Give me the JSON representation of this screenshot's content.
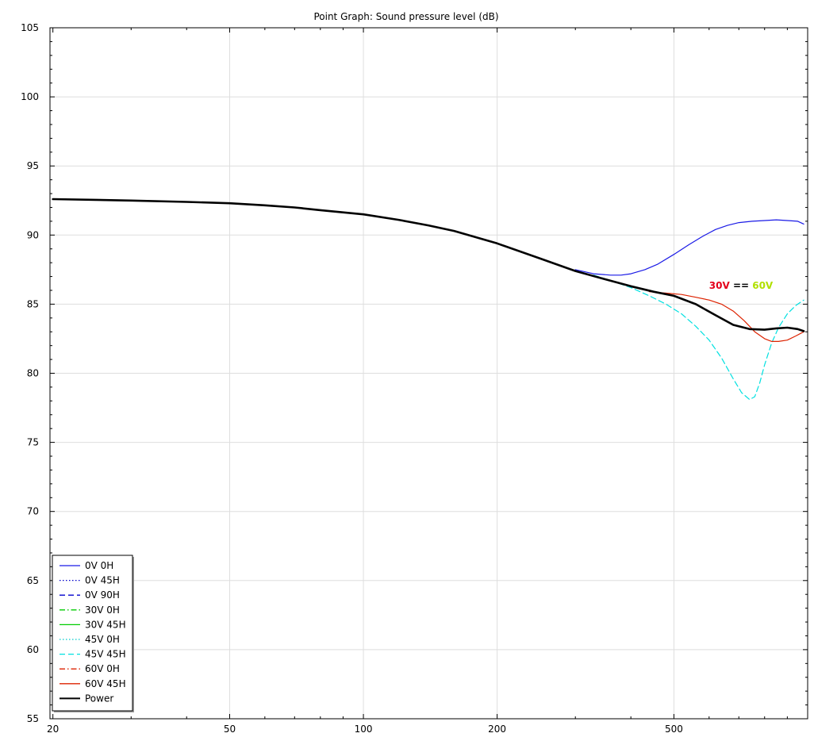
{
  "chart_data": {
    "type": "line",
    "title": "Point Graph: Sound pressure level (dB)",
    "xlabel": "",
    "ylabel": "",
    "x_scale": "log",
    "xlim": [
      19.7,
      1000
    ],
    "ylim": [
      55,
      105
    ],
    "x_ticks": [
      20,
      50,
      100,
      200,
      500
    ],
    "y_ticks": [
      55,
      60,
      65,
      70,
      75,
      80,
      85,
      90,
      95,
      100,
      105
    ],
    "grid": true,
    "legend_position": "bottom-left",
    "annotation": {
      "parts": [
        {
          "text": "30V",
          "color": "#e4001b"
        },
        {
          "text": " == ",
          "color": "#000000"
        },
        {
          "text": "60V",
          "color": "#b0e000"
        }
      ],
      "x": 600,
      "y": 86.1
    },
    "series": [
      {
        "name": "0V 0H",
        "color": "#1a1ae6",
        "dash": "solid",
        "width": 1.2,
        "x": [
          300,
          330,
          360,
          380,
          400,
          430,
          460,
          500,
          540,
          580,
          620,
          660,
          700,
          750,
          800,
          850,
          900,
          950,
          980
        ],
        "y": [
          87.5,
          87.2,
          87.1,
          87.1,
          87.2,
          87.5,
          87.9,
          88.6,
          89.3,
          89.9,
          90.4,
          90.7,
          90.9,
          91.0,
          91.05,
          91.1,
          91.05,
          91.0,
          90.8
        ]
      },
      {
        "name": "0V 45H",
        "color": "#0000cc",
        "dash": "dot",
        "width": 1.2,
        "x": [],
        "y": []
      },
      {
        "name": "0V 90H",
        "color": "#0000cc",
        "dash": "dash",
        "width": 1.2,
        "x": [],
        "y": []
      },
      {
        "name": "30V 0H",
        "color": "#00cc00",
        "dash": "dashdot",
        "width": 1.2,
        "x": [],
        "y": []
      },
      {
        "name": "30V 45H",
        "color": "#00cc00",
        "dash": "solid",
        "width": 1.2,
        "x": [],
        "y": []
      },
      {
        "name": "45V 0H",
        "color": "#00cccc",
        "dash": "dot",
        "width": 1.2,
        "x": [],
        "y": []
      },
      {
        "name": "45V 45H",
        "color": "#00e0e0",
        "dash": "dash",
        "width": 1.2,
        "x": [
          330,
          360,
          400,
          440,
          480,
          520,
          560,
          600,
          640,
          680,
          710,
          740,
          760,
          780,
          800,
          830,
          860,
          900,
          940,
          980
        ],
        "y": [
          87.1,
          86.7,
          86.2,
          85.6,
          85.0,
          84.3,
          83.4,
          82.4,
          81.1,
          79.6,
          78.6,
          78.1,
          78.3,
          79.3,
          80.6,
          82.2,
          83.3,
          84.3,
          84.9,
          85.3
        ]
      },
      {
        "name": "60V 0H",
        "color": "#dd2200",
        "dash": "dashdot",
        "width": 1.2,
        "x": [],
        "y": []
      },
      {
        "name": "60V 45H",
        "color": "#dd2200",
        "dash": "solid",
        "width": 1.2,
        "x": [
          440,
          480,
          520,
          560,
          600,
          640,
          680,
          720,
          760,
          800,
          830,
          860,
          900,
          940,
          980
        ],
        "y": [
          85.9,
          85.8,
          85.7,
          85.5,
          85.3,
          85.0,
          84.5,
          83.8,
          83.0,
          82.5,
          82.3,
          82.3,
          82.4,
          82.7,
          83.0
        ]
      },
      {
        "name": "Power",
        "color": "#000000",
        "dash": "solid",
        "width": 2.6,
        "x": [
          20,
          25,
          30,
          40,
          50,
          60,
          70,
          80,
          100,
          120,
          140,
          160,
          200,
          250,
          300,
          350,
          400,
          450,
          500,
          560,
          620,
          680,
          740,
          800,
          850,
          900,
          950,
          980
        ],
        "y": [
          92.6,
          92.55,
          92.5,
          92.4,
          92.3,
          92.15,
          92.0,
          91.8,
          91.5,
          91.1,
          90.7,
          90.3,
          89.4,
          88.3,
          87.4,
          86.8,
          86.3,
          85.9,
          85.6,
          85.0,
          84.2,
          83.5,
          83.2,
          83.15,
          83.25,
          83.3,
          83.2,
          83.05
        ]
      }
    ]
  }
}
